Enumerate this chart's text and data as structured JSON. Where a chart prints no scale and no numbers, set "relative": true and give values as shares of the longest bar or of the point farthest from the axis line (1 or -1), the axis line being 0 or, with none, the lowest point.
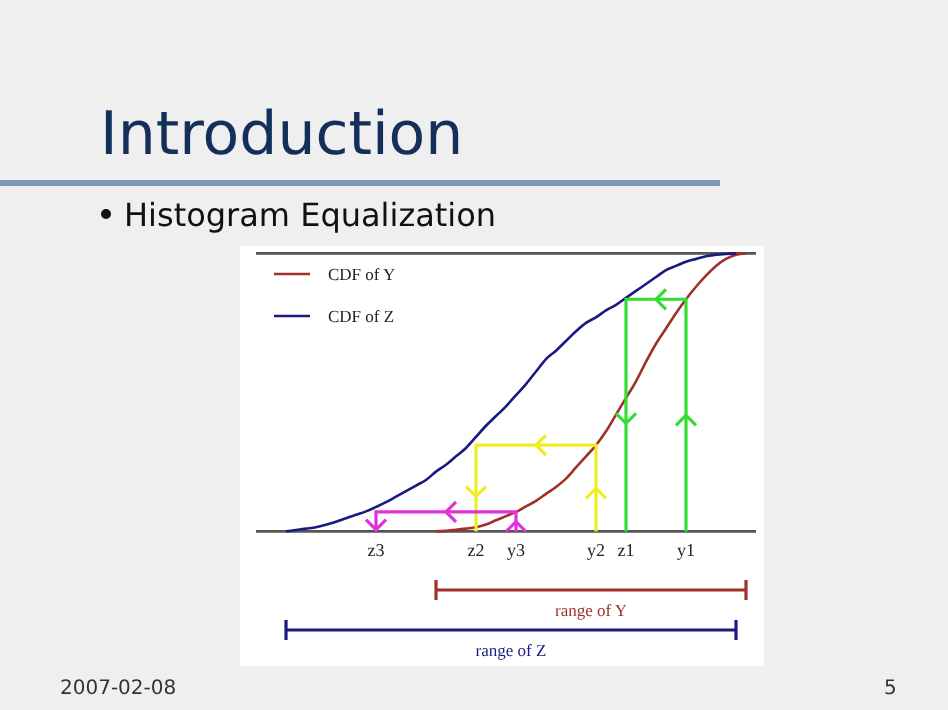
{
  "chart_data": {
    "type": "line",
    "title": "Introduction",
    "subtitle": "Histogram Equalization",
    "relative": true,
    "categories": [
      null,
      null,
      null,
      null,
      null,
      null,
      null,
      null,
      null,
      null,
      null,
      null,
      "z3",
      null,
      null,
      null,
      null,
      null,
      null,
      null,
      null,
      null,
      "z2",
      null,
      null,
      null,
      "y3",
      null,
      null,
      null,
      null,
      null,
      null,
      null,
      "y2",
      null,
      null,
      "z1",
      null,
      null,
      null,
      null,
      null,
      "y1",
      null,
      null,
      null,
      null,
      null,
      null,
      null
    ],
    "series": [
      {
        "name": "CDF of Y",
        "color": "#a0302a",
        "values": [
          null,
          null,
          null,
          null,
          null,
          null,
          null,
          null,
          null,
          null,
          null,
          null,
          null,
          null,
          null,
          null,
          null,
          null,
          0,
          0.002,
          0.006,
          0.01,
          0.015,
          0.025,
          0.04,
          0.055,
          0.07,
          0.09,
          0.11,
          0.135,
          0.16,
          0.19,
          0.23,
          0.27,
          0.31,
          0.36,
          0.42,
          0.48,
          0.54,
          0.61,
          0.675,
          0.73,
          0.785,
          0.835,
          0.88,
          0.92,
          0.955,
          0.98,
          0.995,
          1,
          null
        ]
      },
      {
        "name": "CDF of Z",
        "color": "#1a1a80",
        "values": [
          null,
          null,
          null,
          0,
          0.005,
          0.01,
          0.015,
          0.024,
          0.035,
          0.047,
          0.06,
          0.072,
          0.088,
          0.105,
          0.125,
          0.145,
          0.165,
          0.185,
          0.215,
          0.24,
          0.27,
          0.3,
          0.34,
          0.38,
          0.415,
          0.45,
          0.49,
          0.53,
          0.575,
          0.62,
          0.65,
          0.685,
          0.72,
          0.75,
          0.77,
          0.795,
          0.815,
          0.84,
          0.865,
          0.89,
          0.915,
          0.94,
          0.955,
          0.97,
          0.98,
          0.99,
          0.995,
          0.998,
          1,
          null,
          null
        ]
      }
    ],
    "legend": "top left",
    "marker": "none",
    "line_style": "solid",
    "grid": false,
    "annotations": [
      "range of Y",
      "range of Z",
      "2007-02-08",
      "5"
    ]
  }
}
